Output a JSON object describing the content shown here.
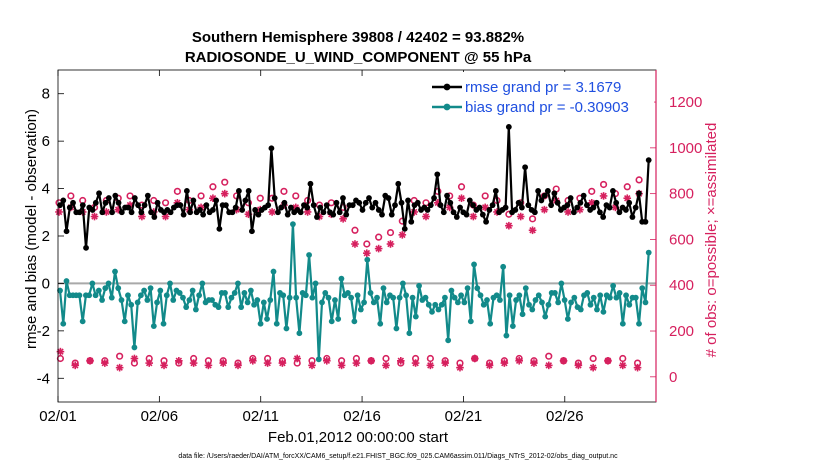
{
  "chart_data": {
    "type": "line",
    "title": "Southern Hemisphere 39808 / 42402 = 93.882%",
    "subtitle": "RADIOSONDE_U_WIND_COMPONENT @ 55 hPa",
    "xlabel": "Feb.01,2012 00:00:00 start",
    "ylabel": "rmse and bias (model - observation)",
    "y2label": "# of obs: o=possible; ×=assimilated",
    "xlim": [
      0,
      29.5
    ],
    "ylim": [
      -5,
      9
    ],
    "y2lim": [
      -110,
      1340
    ],
    "x_ticks": [
      {
        "value": 0,
        "label": "02/01"
      },
      {
        "value": 5,
        "label": "02/06"
      },
      {
        "value": 10,
        "label": "02/11"
      },
      {
        "value": 15,
        "label": "02/16"
      },
      {
        "value": 20,
        "label": "02/21"
      },
      {
        "value": 25,
        "label": "02/26"
      }
    ],
    "y_ticks": [
      {
        "value": -4,
        "label": "-4"
      },
      {
        "value": -2,
        "label": "-2"
      },
      {
        "value": 0,
        "label": "0"
      },
      {
        "value": 2,
        "label": "2"
      },
      {
        "value": 4,
        "label": "4"
      },
      {
        "value": 6,
        "label": "6"
      },
      {
        "value": 8,
        "label": "8"
      }
    ],
    "y2_ticks": [
      {
        "value": 0,
        "label": "0"
      },
      {
        "value": 200,
        "label": "200"
      },
      {
        "value": 400,
        "label": "400"
      },
      {
        "value": 600,
        "label": "600"
      },
      {
        "value": 800,
        "label": "800"
      },
      {
        "value": 1000,
        "label": "1000"
      },
      {
        "value": 1200,
        "label": "1200"
      }
    ],
    "series": [
      {
        "name": "rmse grand pr = 3.1679",
        "color": "#000000",
        "axis": "left",
        "values": [
          3.3,
          3.5,
          2.2,
          3.2,
          3.4,
          3.0,
          3.0,
          3.3,
          1.5,
          3.2,
          3.1,
          3.4,
          3.8,
          3.0,
          3.4,
          3.6,
          3.0,
          3.7,
          3.4,
          3.0,
          3.2,
          3.2,
          3.0,
          3.6,
          3.3,
          3.0,
          3.3,
          3.7,
          3.0,
          2.8,
          3.4,
          3.1,
          3.0,
          3.1,
          3.0,
          3.2,
          3.3,
          3.3,
          2.9,
          3.9,
          3.0,
          3.5,
          3.0,
          3.1,
          2.9,
          3.3,
          3.0,
          3.1,
          3.5,
          2.3,
          3.3,
          3.3,
          3.0,
          3.0,
          3.2,
          3.9,
          3.1,
          3.5,
          3.9,
          2.2,
          3.1,
          2.9,
          3.1,
          3.2,
          3.3,
          5.7,
          3.6,
          3.0,
          3.2,
          3.4,
          2.9,
          3.2,
          3.0,
          3.1,
          3.0,
          3.3,
          3.2,
          4.2,
          3.3,
          2.8,
          3.2,
          3.0,
          3.3,
          3.0,
          2.9,
          3.4,
          3.0,
          3.6,
          2.9,
          3.3,
          3.3,
          3.5,
          3.4,
          3.1,
          3.4,
          3.6,
          3.2,
          3.4,
          3.1,
          2.9,
          3.7,
          3.6,
          2.9,
          3.3,
          4.2,
          3.4,
          2.3,
          3.5,
          2.6,
          3.3,
          3.4,
          3.1,
          3.2,
          3.1,
          3.3,
          3.6,
          4.6,
          3.3,
          3.0,
          3.7,
          3.4,
          3.0,
          2.8,
          3.2,
          3.0,
          2.9,
          3.5,
          3.3,
          3.1,
          3.2,
          2.9,
          2.6,
          3.1,
          3.3,
          3.9,
          3.0,
          3.1,
          3.2,
          6.6,
          3.0,
          3.1,
          3.4,
          3.2,
          4.9,
          3.3,
          3.1,
          3.0,
          3.9,
          3.5,
          3.7,
          3.9,
          3.3,
          3.8,
          3.4,
          3.1,
          3.2,
          3.3,
          3.6,
          3.0,
          3.2,
          3.4,
          3.7,
          3.3,
          3.1,
          3.2,
          3.4,
          3.0,
          2.8,
          3.3,
          3.2,
          3.9,
          3.4,
          3.0,
          3.2,
          3.1,
          3.4,
          2.8,
          3.2,
          3.8,
          2.6,
          2.6,
          5.2
        ]
      },
      {
        "name": "bias grand pr = -0.30903",
        "color": "#128a8a",
        "axis": "left",
        "values": [
          -0.3,
          -1.7,
          0.1,
          -0.5,
          -0.5,
          -0.5,
          -0.5,
          -1.6,
          -0.5,
          -0.5,
          0.0,
          -0.5,
          -0.3,
          -0.7,
          -0.2,
          0.0,
          -0.6,
          0.5,
          -0.2,
          -0.7,
          -1.6,
          -0.5,
          -0.9,
          -2.7,
          -0.8,
          -0.5,
          -0.3,
          -0.7,
          -0.2,
          -1.8,
          -0.8,
          -0.3,
          -1.7,
          -0.5,
          0.0,
          -0.7,
          -0.3,
          -0.4,
          -0.6,
          -1.0,
          -0.7,
          -0.3,
          -1.1,
          -0.5,
          0.0,
          -0.8,
          -0.7,
          -0.7,
          -0.9,
          -1.0,
          -0.4,
          -0.4,
          -1.0,
          -0.6,
          -0.4,
          0.0,
          -1.0,
          -0.4,
          -0.8,
          -0.3,
          -0.9,
          -0.7,
          -1.7,
          -0.8,
          -1.5,
          -0.7,
          0.5,
          -1.7,
          -0.4,
          -0.5,
          -1.9,
          -0.6,
          2.5,
          -0.6,
          -2.1,
          -0.4,
          -0.5,
          1.2,
          -0.6,
          0.0,
          -3.2,
          -0.8,
          -0.4,
          -0.6,
          -1.6,
          -0.7,
          -1.5,
          0.2,
          -0.5,
          -0.4,
          -0.6,
          -1.6,
          -0.5,
          -1.1,
          -0.8,
          1.0,
          -0.4,
          -0.8,
          -0.6,
          -1.7,
          -0.2,
          -0.8,
          -0.5,
          -0.6,
          -1.9,
          -0.6,
          0.0,
          -0.5,
          -2.1,
          -0.6,
          -1.4,
          -0.1,
          -0.7,
          -0.6,
          -0.9,
          -1.2,
          -0.9,
          -1.1,
          -0.9,
          -0.6,
          -2.4,
          -0.3,
          -0.6,
          -0.8,
          -0.5,
          -0.8,
          -0.2,
          -1.6,
          0.8,
          -0.2,
          -0.5,
          -0.9,
          -0.7,
          -1.7,
          -0.6,
          -0.5,
          -0.7,
          0.7,
          -2.2,
          -0.5,
          -1.8,
          -0.7,
          -0.5,
          -1.3,
          -0.2,
          -0.9,
          -1.1,
          -0.7,
          -0.5,
          -0.8,
          -1.4,
          -0.9,
          -0.4,
          -0.4,
          -0.8,
          0.0,
          -0.7,
          -1.5,
          -0.8,
          -0.6,
          -1.0,
          -1.1,
          -0.5,
          -0.4,
          -0.9,
          -0.6,
          -1.1,
          -0.5,
          -1.2,
          -0.5,
          -0.6,
          -0.1,
          -0.6,
          -0.4,
          -1.7,
          -0.5,
          -0.9,
          -0.6,
          -0.6,
          -1.7,
          -0.2,
          -0.8,
          1.3
        ]
      },
      {
        "name": "possible",
        "color": "#d6205e",
        "marker": "o",
        "axis": "right",
        "pattern": "high-low",
        "high_values": [
          760,
          790,
          770,
          740,
          770,
          780,
          790,
          750,
          770,
          760,
          810,
          770,
          790,
          830,
          850,
          790,
          760,
          780,
          780,
          810,
          790,
          770,
          750,
          760,
          740,
          640,
          580,
          610,
          630,
          680,
          770,
          760,
          810,
          790,
          830,
          750,
          790,
          770,
          710,
          760,
          690,
          790,
          820,
          770,
          780,
          810,
          840,
          800,
          830,
          860
        ],
        "low_values": [
          80,
          60,
          70,
          70,
          90,
          60,
          80,
          70,
          60,
          80,
          70,
          70,
          60,
          80,
          80,
          70,
          60,
          70,
          80,
          70,
          80,
          70,
          80,
          60,
          80,
          80,
          70,
          60,
          80,
          60,
          70,
          80,
          70,
          90,
          70,
          60,
          80,
          70,
          80,
          60
        ]
      },
      {
        "name": "assimilated",
        "color": "#d6205e",
        "marker": "*",
        "axis": "right",
        "pattern": "high-low",
        "high_values": [
          720,
          740,
          720,
          700,
          720,
          730,
          750,
          700,
          720,
          700,
          760,
          730,
          740,
          780,
          800,
          730,
          710,
          730,
          720,
          750,
          740,
          720,
          700,
          710,
          690,
          580,
          540,
          560,
          580,
          620,
          720,
          700,
          760,
          740,
          780,
          700,
          740,
          720,
          660,
          700,
          640,
          730,
          770,
          720,
          730,
          760,
          790,
          740,
          780,
          800
        ],
        "low_values": [
          110,
          50,
          70,
          60,
          40,
          80,
          60,
          50,
          70,
          60,
          50,
          60,
          50,
          70,
          60,
          60,
          80,
          50,
          70,
          50,
          60,
          70,
          50,
          70,
          60,
          50,
          60,
          40,
          80,
          50,
          60,
          70,
          60,
          50,
          70,
          50,
          40,
          70,
          50,
          40
        ]
      }
    ]
  },
  "footer": {
    "text": "data file: /Users/raeder/DAI/ATM_forcXX/CAM6_setup/f.e21.FHIST_BGC.f09_025.CAM6assim.011/Diags_NTrS_2012-02/obs_diag_output.nc"
  },
  "colors": {
    "rmse": "#000000",
    "bias": "#128a8a",
    "obs": "#d6205e",
    "zero_line": "#a9a9a9",
    "legend_text": "#1f4fe0"
  }
}
